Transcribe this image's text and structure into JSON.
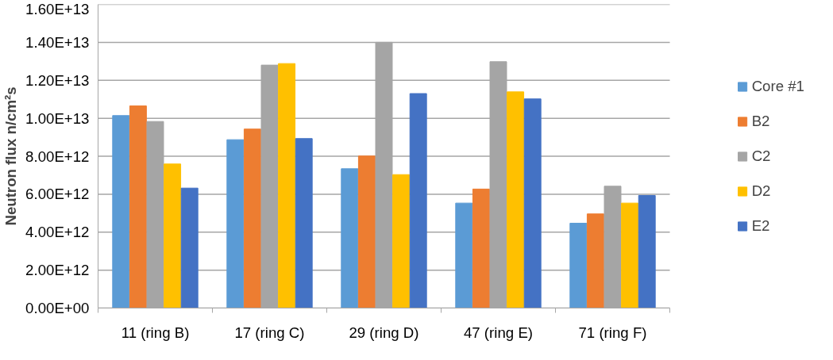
{
  "chart_data": {
    "type": "bar",
    "ylabel": "Neutron flux n/cm²s",
    "categories": [
      "11 (ring B)",
      "17 (ring C)",
      "29 (ring D)",
      "47 (ring E)",
      "71 (ring F)"
    ],
    "series": [
      {
        "name": "Core #1",
        "color": "#5b9bd5",
        "values": [
          10140000000000.0,
          8870000000000.0,
          7340000000000.0,
          5530000000000.0,
          4470000000000.0
        ]
      },
      {
        "name": "B2",
        "color": "#ed7d31",
        "values": [
          10650000000000.0,
          9430000000000.0,
          8010000000000.0,
          6270000000000.0,
          4960000000000.0
        ]
      },
      {
        "name": "C2",
        "color": "#a5a5a5",
        "values": [
          9830000000000.0,
          12800000000000.0,
          14000000000000.0,
          12980000000000.0,
          6420000000000.0
        ]
      },
      {
        "name": "D2",
        "color": "#ffc000",
        "values": [
          7590000000000.0,
          12880000000000.0,
          7030000000000.0,
          11390000000000.0,
          5530000000000.0
        ]
      },
      {
        "name": "E2",
        "color": "#4472c4",
        "values": [
          6320000000000.0,
          8930000000000.0,
          11300000000000.0,
          11020000000000.0,
          5930000000000.0
        ]
      }
    ],
    "ylim": [
      0,
      16000000000000.0
    ],
    "yticks": [
      {
        "value": 0,
        "label": "0.00E+00"
      },
      {
        "value": 2000000000000.0,
        "label": "2.00E+12"
      },
      {
        "value": 4000000000000.0,
        "label": "4.00E+12"
      },
      {
        "value": 6000000000000.0,
        "label": "6.00E+12"
      },
      {
        "value": 8000000000000.0,
        "label": "8.00E+12"
      },
      {
        "value": 10000000000000.0,
        "label": "1.00E+13"
      },
      {
        "value": 12000000000000.0,
        "label": "1.20E+13"
      },
      {
        "value": 14000000000000.0,
        "label": "1.40E+13"
      },
      {
        "value": 16000000000000.0,
        "label": "1.60E+13"
      }
    ],
    "grid": "y",
    "legend": "right"
  }
}
